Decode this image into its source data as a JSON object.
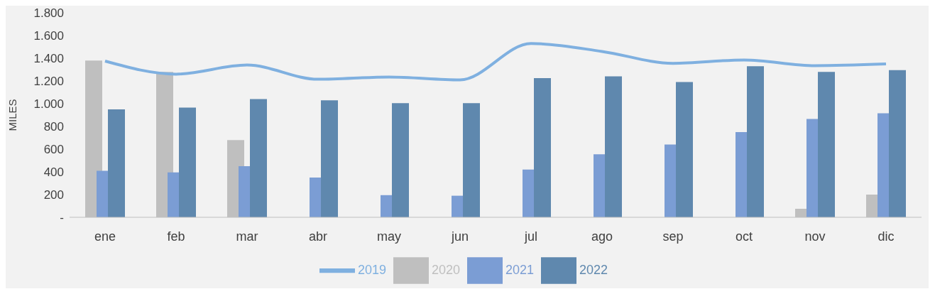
{
  "chart_data": {
    "type": "bar",
    "ylabel": "MILES",
    "categories": [
      "ene",
      "feb",
      "mar",
      "abr",
      "may",
      "jun",
      "jul",
      "ago",
      "sep",
      "oct",
      "nov",
      "dic"
    ],
    "series": [
      {
        "name": "2020",
        "color": "#bfbfbf",
        "values": [
          1380,
          1280,
          680,
          0,
          0,
          0,
          0,
          0,
          0,
          null,
          75,
          200
        ]
      },
      {
        "name": "2021",
        "color": "#7b9dd4",
        "values": [
          410,
          395,
          450,
          350,
          195,
          190,
          420,
          555,
          640,
          750,
          865,
          915
        ]
      },
      {
        "name": "2022",
        "color": "#5f88ae",
        "values": [
          950,
          965,
          1040,
          1030,
          1005,
          1005,
          1225,
          1240,
          1190,
          1330,
          1280,
          1295
        ]
      },
      {
        "name": "2019",
        "type": "line",
        "color": "#7fb0e0",
        "values": [
          1375,
          1260,
          1340,
          1215,
          1235,
          1210,
          1530,
          1460,
          1355,
          1385,
          1335,
          1350
        ]
      }
    ],
    "ylim": [
      0,
      1800
    ],
    "yticks": [
      {
        "value": 0,
        "label": "-"
      },
      {
        "value": 200,
        "label": "200"
      },
      {
        "value": 400,
        "label": "400"
      },
      {
        "value": 600,
        "label": "600"
      },
      {
        "value": 800,
        "label": "800"
      },
      {
        "value": 1000,
        "label": "1.000"
      },
      {
        "value": 1200,
        "label": "1.200"
      },
      {
        "value": 1400,
        "label": "1.400"
      },
      {
        "value": 1600,
        "label": "1.600"
      },
      {
        "value": 1800,
        "label": "1.800"
      }
    ],
    "grid": false,
    "legend": "bottom",
    "marker": "none"
  }
}
